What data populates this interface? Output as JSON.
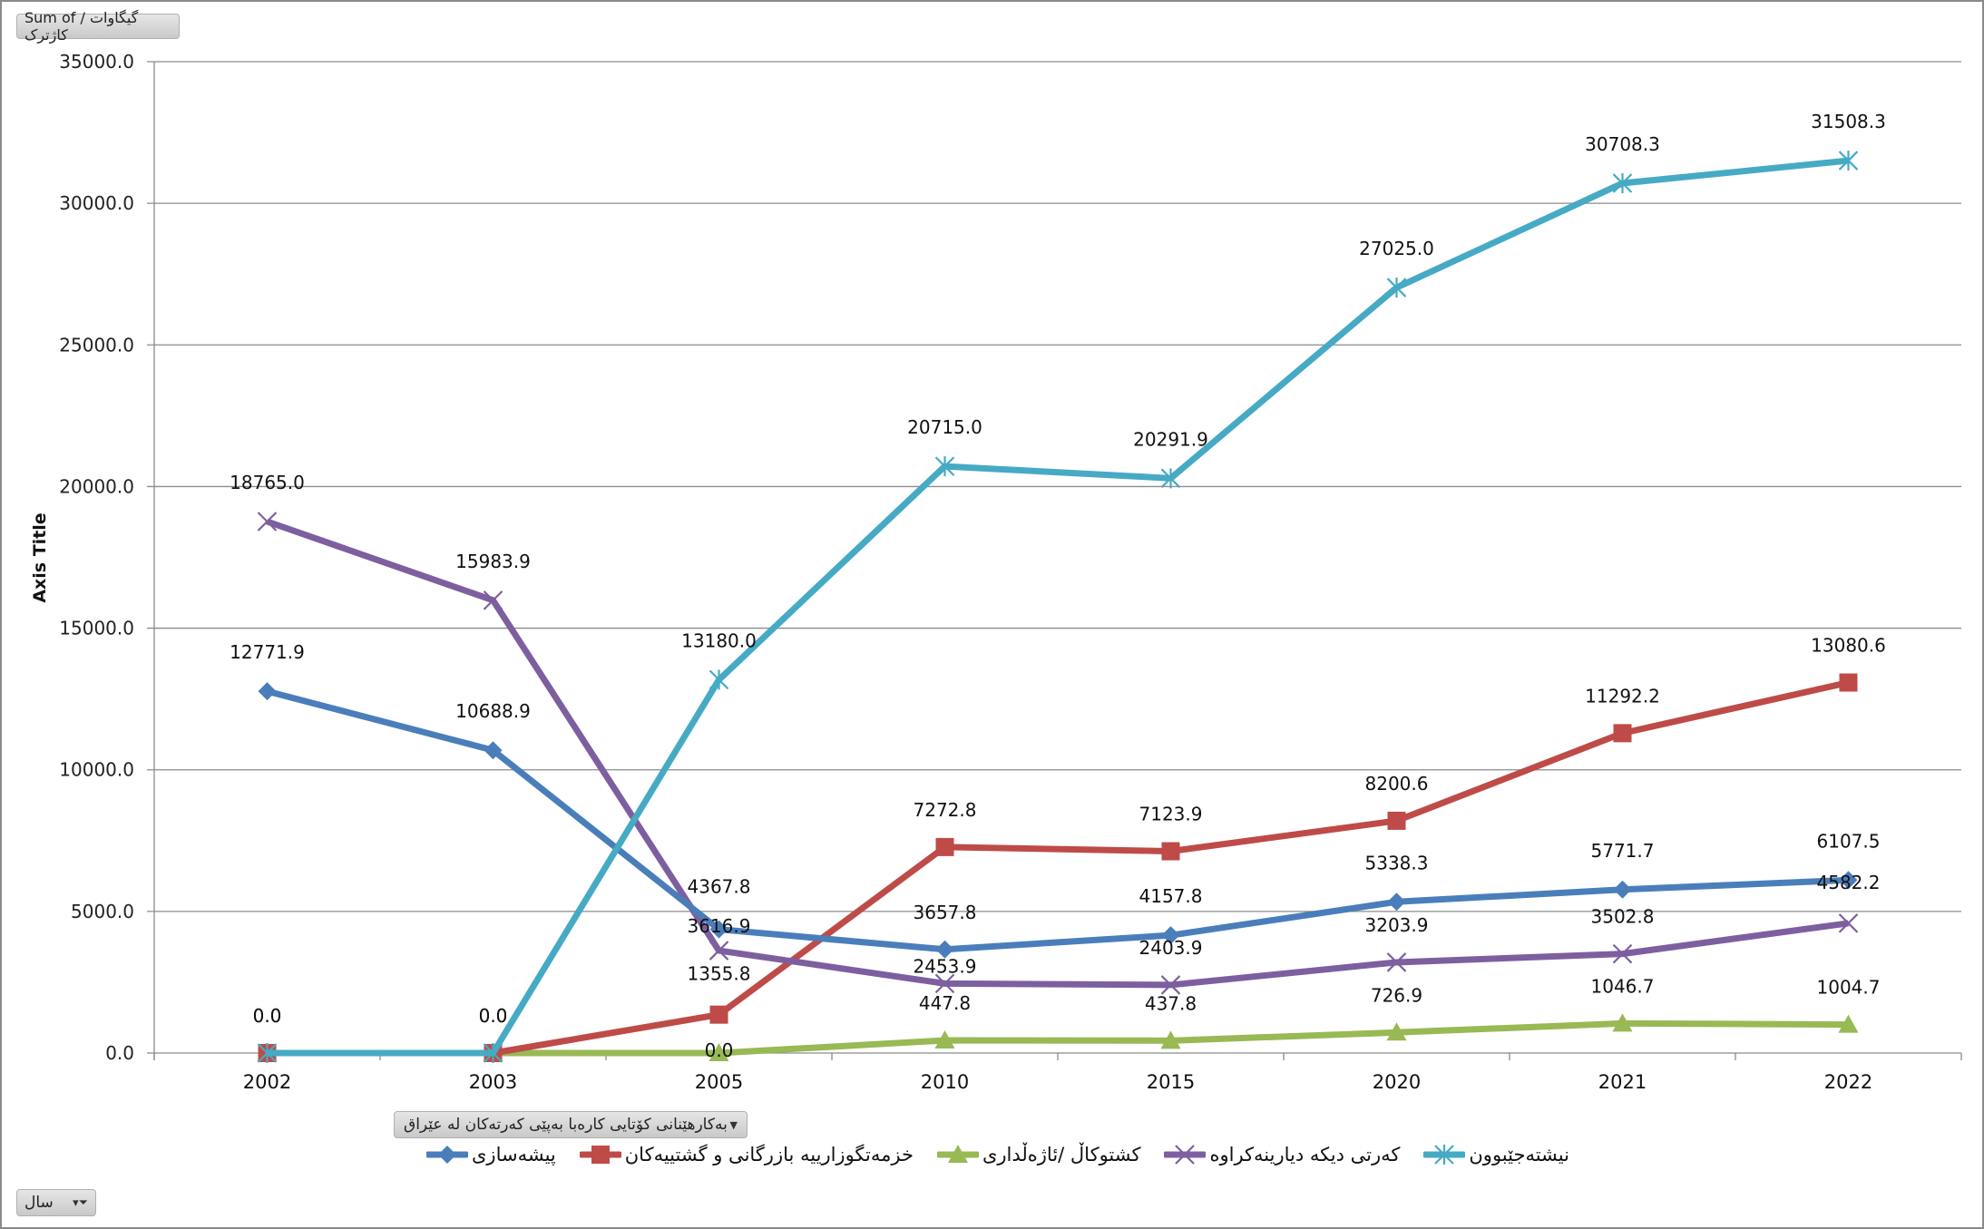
{
  "value_field_button": {
    "label": "Sum of گیگاوات /کاژترک"
  },
  "axis_field_button": {
    "label": "بەکارهێنانی کۆتایی کارەبا بەپێی کەرتەکان لە عێراق",
    "arrow": "▼"
  },
  "year_filter_button": {
    "label": "سال",
    "icon": "funnel-dropdown-icon"
  },
  "colors": {
    "industry": "#4A7EBB",
    "services": "#BE4B48",
    "agriculture": "#98B954",
    "other": "#7D5FA0",
    "residential": "#46AAC5",
    "grid": "#8c8c8c"
  },
  "chart_data": {
    "type": "line",
    "title": "",
    "xlabel": "",
    "ylabel": "Axis Title",
    "ylim": [
      0,
      35000
    ],
    "yticks": [
      "0.0",
      "5000.0",
      "10000.0",
      "15000.0",
      "20000.0",
      "25000.0",
      "30000.0",
      "35000.0"
    ],
    "grid": true,
    "legend_position": "bottom",
    "categories": [
      "2002",
      "2003",
      "2005",
      "2010",
      "2015",
      "2020",
      "2021",
      "2022"
    ],
    "series": [
      {
        "key": "industry",
        "name": "پیشەسازی",
        "marker": "diamond",
        "values": [
          12771.9,
          10688.9,
          4367.8,
          3657.8,
          4157.8,
          5338.3,
          5771.7,
          6107.5
        ]
      },
      {
        "key": "services",
        "name": "خزمەتگوزارییە بازرگانی و گشتییەکان",
        "marker": "square",
        "values": [
          0.0,
          0.0,
          1355.8,
          7272.8,
          7123.9,
          8200.6,
          11292.2,
          13080.6
        ]
      },
      {
        "key": "agriculture",
        "name": "کشتوکاڵ /ئاژەڵداری",
        "marker": "triangle",
        "values": [
          0.0,
          0.0,
          0.0,
          447.8,
          437.8,
          726.9,
          1046.7,
          1004.7
        ]
      },
      {
        "key": "other",
        "name": "کەرتی دیکە دیارینەکراوە",
        "marker": "x",
        "values": [
          18765.0,
          15983.9,
          3616.9,
          2453.9,
          2403.9,
          3203.9,
          3502.8,
          4582.2
        ]
      },
      {
        "key": "residential",
        "name": "نیشتەجێبوون",
        "marker": "star",
        "values": [
          0.0,
          0.0,
          13180.0,
          20715.0,
          20291.9,
          27025.0,
          30708.3,
          31508.3
        ]
      }
    ],
    "data_labels": [
      {
        "text": "12771.9"
      },
      {
        "text": "10688.9"
      },
      {
        "text": "4367.8"
      },
      {
        "text": "3657.8"
      },
      {
        "text": "4157.8"
      },
      {
        "text": "5338.3"
      },
      {
        "text": "5771.7"
      },
      {
        "text": "6107.5"
      },
      {
        "text": "0.0"
      },
      {
        "text": "0.0"
      },
      {
        "text": "1355.8"
      },
      {
        "text": "7272.8"
      },
      {
        "text": "7123.9"
      },
      {
        "text": "8200.6"
      },
      {
        "text": "11292.2"
      },
      {
        "text": "13080.6"
      },
      {
        "text": "0.0"
      },
      {
        "text": "447.8"
      },
      {
        "text": "437.8"
      },
      {
        "text": "726.9"
      },
      {
        "text": "1046.7"
      },
      {
        "text": "1004.7"
      },
      {
        "text": "18765.0"
      },
      {
        "text": "15983.9"
      },
      {
        "text": "3616.9"
      },
      {
        "text": "2453.9"
      },
      {
        "text": "2403.9"
      },
      {
        "text": "3203.9"
      },
      {
        "text": "3502.8"
      },
      {
        "text": "4582.2"
      },
      {
        "text": "0.0"
      },
      {
        "text": "0.0"
      },
      {
        "text": "13180.0"
      },
      {
        "text": "20715.0"
      },
      {
        "text": "20291.9"
      },
      {
        "text": "27025.0"
      },
      {
        "text": "30708.3"
      },
      {
        "text": "31508.3"
      }
    ]
  }
}
